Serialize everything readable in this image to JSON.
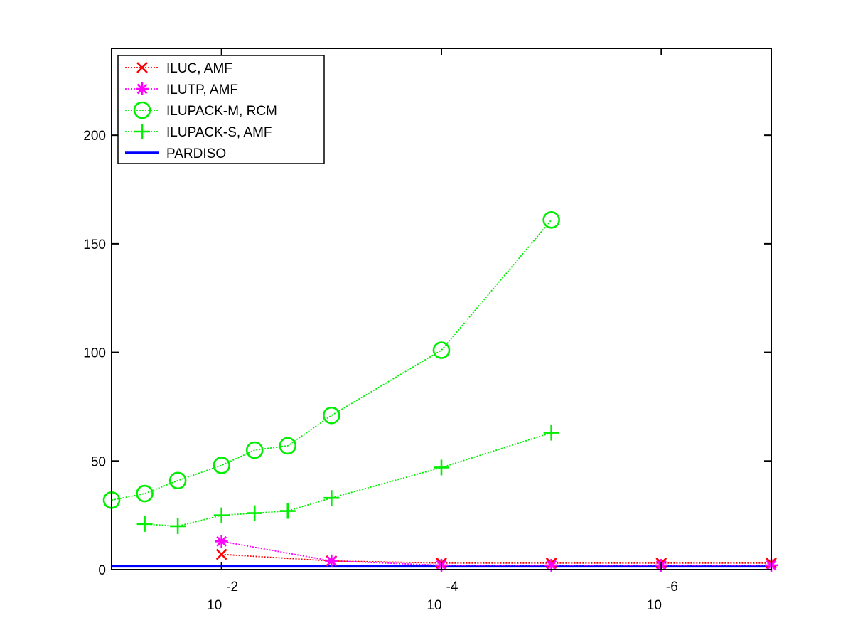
{
  "chart_data": {
    "type": "line",
    "title": "",
    "xlabel": "",
    "ylabel": "",
    "x_scale": "log-reversed",
    "xlim": [
      0.1,
      1e-07
    ],
    "ylim": [
      0,
      240
    ],
    "grid": false,
    "legend_position": "top-left",
    "x_ticks": [
      {
        "value": 0.01,
        "base": "10",
        "exponent": "-2"
      },
      {
        "value": 0.0001,
        "base": "10",
        "exponent": "-4"
      },
      {
        "value": 1e-06,
        "base": "10",
        "exponent": "-6"
      }
    ],
    "y_ticks": [
      {
        "value": 0,
        "label": "0"
      },
      {
        "value": 50,
        "label": "50"
      },
      {
        "value": 100,
        "label": "100"
      },
      {
        "value": 150,
        "label": "150"
      },
      {
        "value": 200,
        "label": "200"
      }
    ],
    "series": [
      {
        "name": "ILUC, AMF",
        "color": "#ff0000",
        "marker": "x",
        "line": "dotted",
        "x": [
          0.01,
          0.001,
          0.0001,
          1e-05,
          1e-06,
          1e-07
        ],
        "y": [
          7,
          4,
          3,
          3,
          3,
          3
        ]
      },
      {
        "name": "ILUTP, AMF",
        "color": "#ff00ff",
        "marker": "star",
        "line": "dotted",
        "x": [
          0.01,
          0.001,
          0.0001,
          1e-05,
          1e-06,
          1e-07
        ],
        "y": [
          13,
          4,
          2,
          2,
          2,
          2
        ]
      },
      {
        "name": "ILUPACK-M, RCM",
        "color": "#00ee00",
        "marker": "circle",
        "line": "dotted",
        "x": [
          0.1,
          0.05,
          0.025,
          0.01,
          0.005,
          0.0025,
          0.001,
          0.0001,
          1e-05
        ],
        "y": [
          32,
          35,
          41,
          48,
          55,
          57,
          71,
          101,
          161
        ]
      },
      {
        "name": "ILUPACK-S, AMF",
        "color": "#00ee00",
        "marker": "plus",
        "line": "dotted",
        "x": [
          0.05,
          0.025,
          0.01,
          0.005,
          0.0025,
          0.001,
          0.0001,
          1e-05
        ],
        "y": [
          21,
          20,
          25,
          26,
          27,
          33,
          47,
          63
        ]
      },
      {
        "name": "PARDISO",
        "color": "#0000ff",
        "marker": "none",
        "line": "solid",
        "x": [
          0.1,
          1e-07
        ],
        "y": [
          1.5,
          1.5
        ]
      }
    ]
  }
}
